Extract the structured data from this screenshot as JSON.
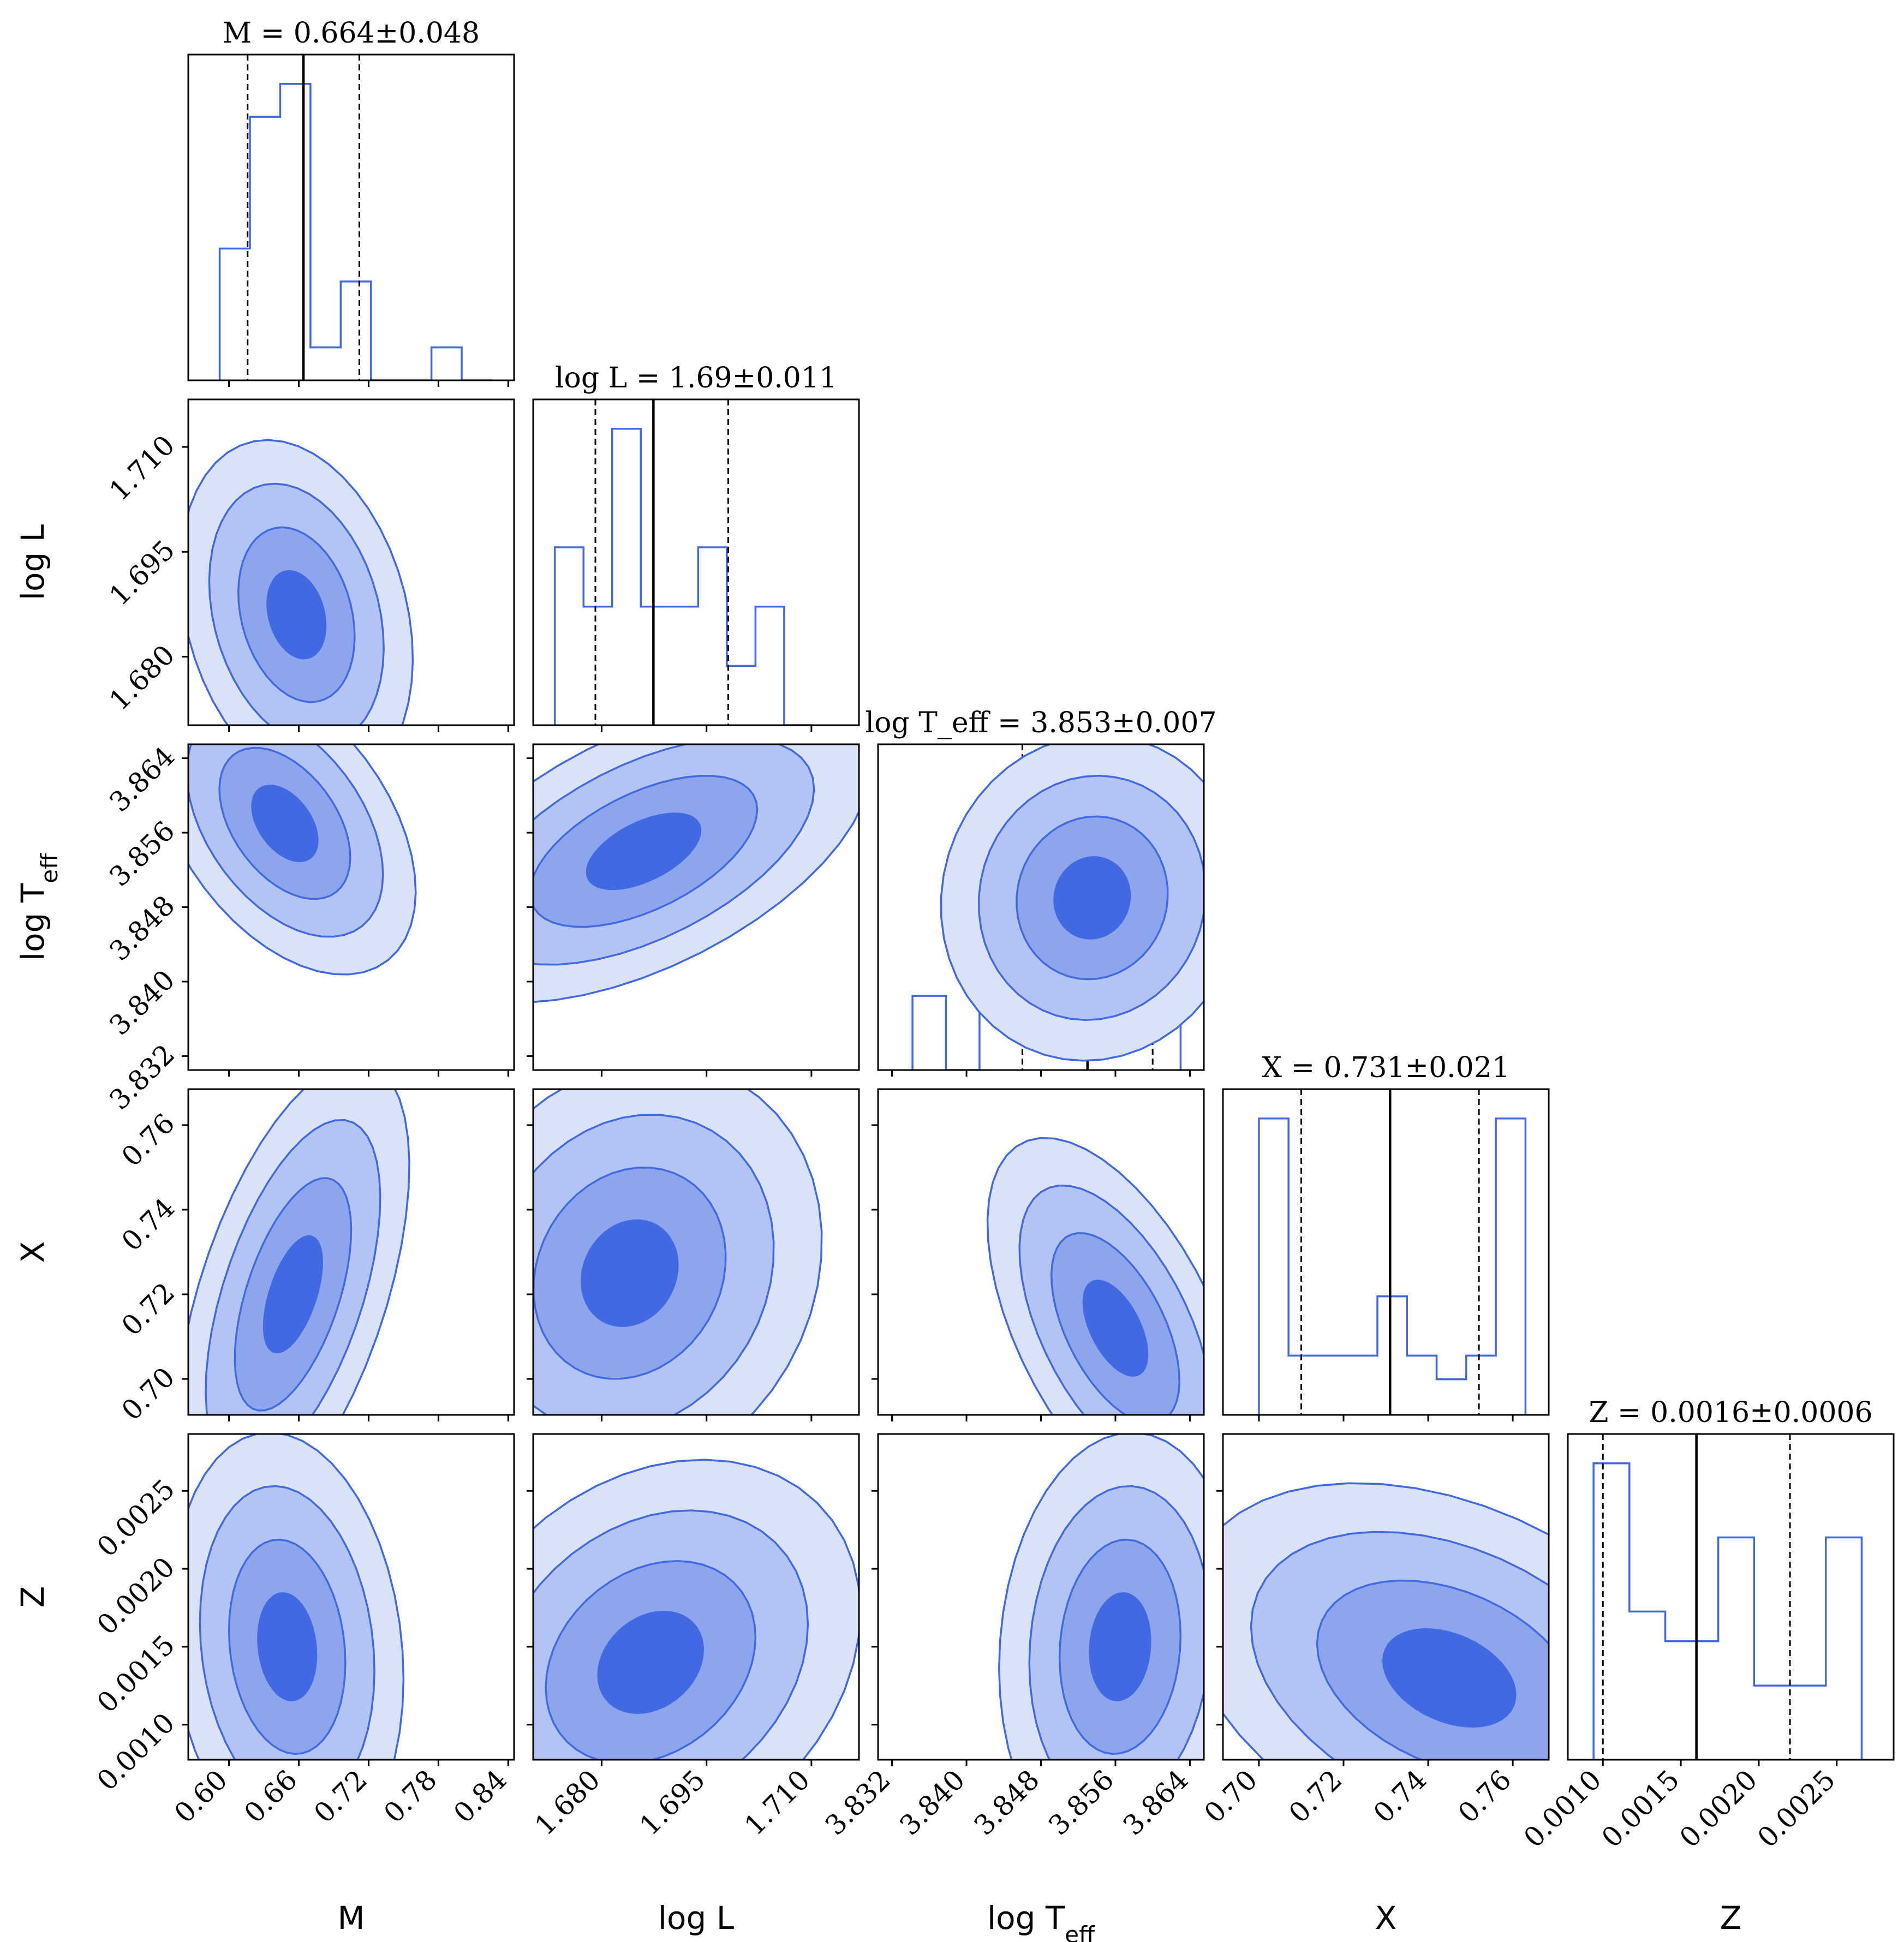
{
  "colors": {
    "line": "#4169e1",
    "fill1": "#dae2f9",
    "fill2": "#b3c3f3",
    "fill3": "#8da5ed",
    "fill4": "#4169e1",
    "median": "#000000",
    "quantile": "#000000"
  },
  "chart_data": {
    "type": "corner",
    "params": [
      {
        "key": "M",
        "xlabel": "M",
        "ylabel": "",
        "title": "M = 0.664±0.048",
        "range": [
          0.565,
          0.845
        ],
        "ticks": [
          0.6,
          0.66,
          0.72,
          0.78,
          0.84
        ],
        "tick_labels": [
          "0.60",
          "0.66",
          "0.72",
          "0.78",
          "0.84"
        ],
        "median": 0.664,
        "q16": 0.616,
        "q84": 0.712,
        "hist": {
          "edges": [
            0.592,
            0.618,
            0.644,
            0.67,
            0.696,
            0.722,
            0.748,
            0.774,
            0.8,
            0.826
          ],
          "counts": [
            4,
            8,
            9,
            1,
            3,
            0,
            0,
            1,
            0
          ]
        }
      },
      {
        "key": "logL",
        "xlabel": "log L",
        "ylabel": "log L",
        "title": "log L = 1.69±0.011",
        "range": [
          1.6702,
          1.7168
        ],
        "ticks": [
          1.68,
          1.695,
          1.71
        ],
        "tick_labels": [
          "1.680",
          "1.695",
          "1.710"
        ],
        "median": 1.6874,
        "q16": 1.6791,
        "q84": 1.6981,
        "hist": {
          "edges": [
            1.6733,
            1.6774,
            1.6815,
            1.6856,
            1.6897,
            1.6938,
            1.6979,
            1.702,
            1.7061,
            1.7102
          ],
          "counts": [
            3,
            2,
            5,
            2,
            2,
            3,
            1,
            2,
            0
          ]
        }
      },
      {
        "key": "logTeff",
        "xlabel": "log T_eff",
        "ylabel": "log T_eff",
        "title": "log T_eff = 3.853±0.007",
        "range": [
          3.8305,
          3.8655
        ],
        "ticks": [
          3.832,
          3.84,
          3.848,
          3.856,
          3.864
        ],
        "tick_labels": [
          "3.832",
          "3.840",
          "3.848",
          "3.856",
          "3.864"
        ],
        "median": 3.853,
        "q16": 3.846,
        "q84": 3.86,
        "hist": {
          "edges": [
            3.8342,
            3.8378,
            3.8414,
            3.845,
            3.8486,
            3.8522,
            3.8558,
            3.8594,
            3.863
          ],
          "counts": [
            1,
            0,
            1,
            1,
            4,
            2,
            4,
            3
          ]
        }
      },
      {
        "key": "X",
        "xlabel": "X",
        "ylabel": "X",
        "title": "X = 0.731±0.021",
        "range": [
          0.6915,
          0.7685
        ],
        "ticks": [
          0.7,
          0.72,
          0.74,
          0.76
        ],
        "tick_labels": [
          "0.70",
          "0.72",
          "0.74",
          "0.76"
        ],
        "median": 0.731,
        "q16": 0.71,
        "q84": 0.752,
        "hist": {
          "edges": [
            0.7,
            0.707,
            0.714,
            0.721,
            0.728,
            0.735,
            0.742,
            0.749,
            0.756,
            0.763
          ],
          "counts": [
            5,
            1,
            1,
            1,
            2,
            1,
            0.6,
            1,
            5
          ]
        }
      },
      {
        "key": "Z",
        "xlabel": "Z",
        "ylabel": "Z",
        "title": "Z = 0.0016±0.0006",
        "range": [
          0.000775,
          0.002865
        ],
        "ticks": [
          0.001,
          0.0015,
          0.002,
          0.0025
        ],
        "tick_labels": [
          "0.0010",
          "0.0015",
          "0.0020",
          "0.0025"
        ],
        "median": 0.0016,
        "q16": 0.001,
        "q84": 0.0022,
        "hist": {
          "edges": [
            0.00094,
            0.00105,
            0.00117,
            0.00128,
            0.0014,
            0.00151,
            0.00163,
            0.00174,
            0.00186,
            0.00197,
            0.00209,
            0.0022,
            0.00232,
            0.00243,
            0.00255,
            0.00266
          ],
          "counts": [
            4,
            4,
            2,
            2,
            1.6,
            1.6,
            1.6,
            3,
            3,
            1,
            1,
            1,
            1,
            3,
            3
          ]
        }
      }
    ],
    "levels_sigma": [
      0.5,
      1.0,
      1.5,
      2.0
    ],
    "pair_centers": [
      {
        "row": 1,
        "col": 0,
        "cx": 0.658,
        "cy": 1.686,
        "sx": 0.04,
        "sy": 0.01,
        "rho": -0.25
      },
      {
        "row": 2,
        "col": 0,
        "cx": 0.648,
        "cy": 3.857,
        "sx": 0.045,
        "sy": 0.0065,
        "rho": -0.45
      },
      {
        "row": 2,
        "col": 1,
        "cx": 1.686,
        "cy": 3.854,
        "sx": 0.013,
        "sy": 0.0065,
        "rho": 0.55
      },
      {
        "row": 2,
        "col": 2,
        "cx": 3.8535,
        "cy": 3.849,
        "sx": 0.0065,
        "sy": 0.007,
        "rho": 0.05
      },
      {
        "row": 3,
        "col": 0,
        "cx": 0.655,
        "cy": 0.72,
        "sx": 0.04,
        "sy": 0.022,
        "rho": 0.55
      },
      {
        "row": 3,
        "col": 1,
        "cx": 1.684,
        "cy": 0.725,
        "sx": 0.011,
        "sy": 0.02,
        "rho": 0.15
      },
      {
        "row": 3,
        "col": 2,
        "cx": 3.856,
        "cy": 0.712,
        "sx": 0.0055,
        "sy": 0.018,
        "rho": -0.55
      },
      {
        "row": 4,
        "col": 0,
        "cx": 0.65,
        "cy": 0.0015,
        "sx": 0.04,
        "sy": 0.00055,
        "rho": -0.15
      },
      {
        "row": 4,
        "col": 1,
        "cx": 1.687,
        "cy": 0.0014,
        "sx": 0.012,
        "sy": 0.00052,
        "rho": 0.25
      },
      {
        "row": 4,
        "col": 2,
        "cx": 3.8565,
        "cy": 0.0015,
        "sx": 0.0052,
        "sy": 0.00055,
        "rho": 0.1
      },
      {
        "row": 4,
        "col": 3,
        "cx": 0.745,
        "cy": 0.0013,
        "sx": 0.025,
        "sy": 0.0005,
        "rho": -0.35
      }
    ]
  }
}
